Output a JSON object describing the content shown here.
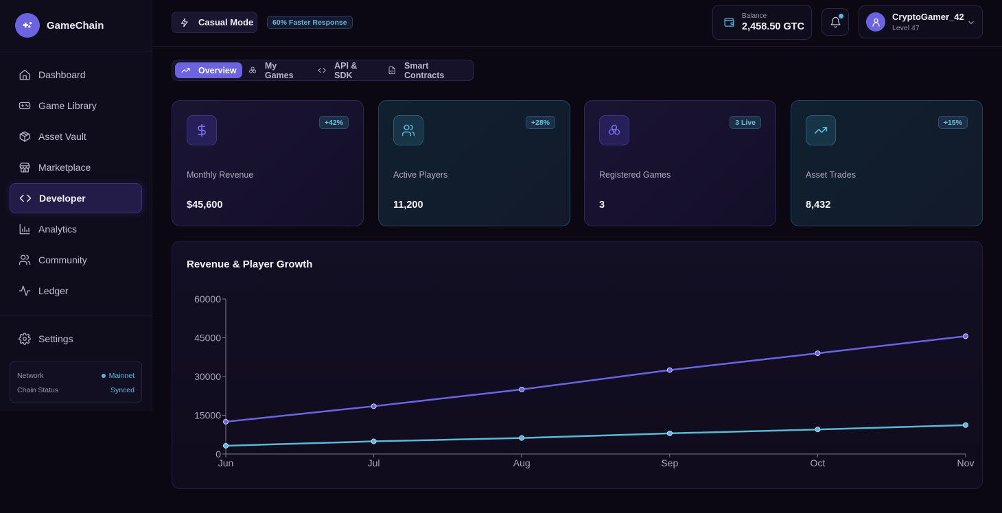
{
  "brand": {
    "name": "GameChain",
    "icon": "gamepad-icon"
  },
  "sidebar": {
    "items": [
      {
        "label": "Dashboard",
        "icon": "home-icon",
        "active": false
      },
      {
        "label": "Game Library",
        "icon": "gamepad-icon",
        "active": false
      },
      {
        "label": "Asset Vault",
        "icon": "box-icon",
        "active": false
      },
      {
        "label": "Marketplace",
        "icon": "store-icon",
        "active": false
      },
      {
        "label": "Developer",
        "icon": "code-icon",
        "active": true
      },
      {
        "label": "Analytics",
        "icon": "bar-chart-icon",
        "active": false
      },
      {
        "label": "Community",
        "icon": "users-icon",
        "active": false
      },
      {
        "label": "Ledger",
        "icon": "activity-icon",
        "active": false
      }
    ],
    "settings_label": "Settings",
    "network": {
      "network_label": "Network",
      "network_value": "Mainnet",
      "status_label": "Chain Status",
      "status_value": "Synced"
    }
  },
  "header": {
    "mode_label": "Casual Mode",
    "speed_badge": "60% Faster Response",
    "balance_label": "Balance",
    "balance_value": "2,458.50 GTC",
    "user_name": "CryptoGamer_42",
    "user_level": "Level 47"
  },
  "tabs": [
    {
      "label": "Overview",
      "icon": "trending-up-icon",
      "active": true
    },
    {
      "label": "My Games",
      "icon": "boxes-icon",
      "active": false
    },
    {
      "label": "API & SDK",
      "icon": "code-icon",
      "active": false
    },
    {
      "label": "Smart Contracts",
      "icon": "file-code-icon",
      "active": false
    }
  ],
  "stats": [
    {
      "label": "Monthly Revenue",
      "value": "$45,600",
      "badge": "+42%",
      "icon": "dollar-icon",
      "theme": "purple"
    },
    {
      "label": "Active Players",
      "value": "11,200",
      "badge": "+28%",
      "icon": "users-icon",
      "theme": "teal"
    },
    {
      "label": "Registered Games",
      "value": "3",
      "badge": "3 Live",
      "icon": "boxes-icon",
      "theme": "purple"
    },
    {
      "label": "Asset Trades",
      "value": "8,432",
      "badge": "+15%",
      "icon": "trending-up-icon",
      "theme": "teal"
    }
  ],
  "colors": {
    "accent": "#6b63e0",
    "teal": "#5eb6d6",
    "revenue_line": "#6c63e6",
    "players_line": "#5ab9d6"
  },
  "chart_data": {
    "type": "line",
    "title": "Revenue & Player Growth",
    "xlabel": "",
    "ylabel": "",
    "categories": [
      "Jun",
      "Jul",
      "Aug",
      "Sep",
      "Oct",
      "Nov"
    ],
    "series": [
      {
        "name": "Revenue",
        "color": "#6c63e6",
        "values": [
          12500,
          18500,
          25000,
          32500,
          39000,
          45600
        ]
      },
      {
        "name": "Players",
        "color": "#5ab9d6",
        "values": [
          3200,
          4900,
          6200,
          8000,
          9500,
          11200
        ]
      }
    ],
    "yticks": [
      0,
      15000,
      30000,
      45000,
      60000
    ],
    "ylim": [
      0,
      60000
    ],
    "grid": false,
    "legend": "none"
  }
}
